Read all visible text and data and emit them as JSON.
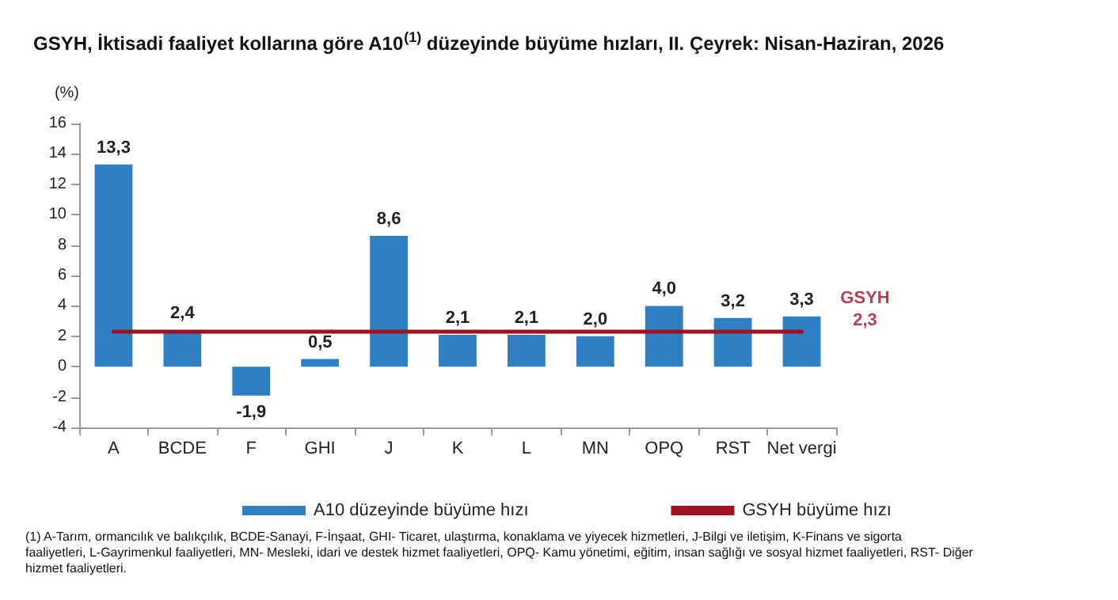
{
  "chart_data": {
    "type": "bar",
    "title": "GSYH, İktisadi faaliyet kollarına göre A10$^{(1)}$ düzeyinde büyüme hızları, II. Çeyrek: Nisan-Haziran, 2026",
    "ylabel": "(%)",
    "categories": [
      "A",
      "BCDE",
      "F",
      "GHI",
      "J",
      "K",
      "L",
      "MN",
      "OPQ",
      "RST",
      "Net vergi"
    ],
    "series": [
      {
        "name": "A10 düzeyinde büyüme hızı",
        "color": "#2f7fc4",
        "values": [
          13.3,
          2.4,
          -1.9,
          0.5,
          8.6,
          2.1,
          2.1,
          2.0,
          4.0,
          3.2,
          3.3
        ],
        "value_labels": [
          "13,3",
          "2,4",
          "-1,9",
          "0,5",
          "8,6",
          "2,1",
          "2,1",
          "2,0",
          "4,0",
          "3,2",
          "3,3"
        ]
      },
      {
        "name": "GSYH büyüme hızı",
        "type": "line",
        "color": "#a0101e",
        "values": [
          2.3,
          2.3,
          2.3,
          2.3,
          2.3,
          2.3,
          2.3,
          2.3,
          2.3,
          2.3,
          2.3
        ]
      }
    ],
    "ylim": [
      -4,
      16
    ],
    "yticks": [
      -4,
      -2,
      0,
      2,
      4,
      6,
      8,
      10,
      12,
      14,
      16
    ],
    "grid": false,
    "legend": "bottom",
    "marker": "none",
    "line_style": "solid",
    "annotations": [
      {
        "text": "GSYH\n2,3",
        "x": "Net vergi",
        "y": 2.3
      },
      "(1) A-Tarım, ormancılık ve balıkçılık, BCDE-Sanayi, F-İnşaat, GHI- Ticaret, ulaştırma, konaklama ve yiyecek hizmetleri, J-Bilgi ve iletişim, K-Finans ve sigorta faaliyetleri, L-Gayrimenkul faaliyetleri, MN- Mesleki, idari ve destek hizmet faaliyetleri, OPQ- Kamu yönetimi, eğitim, insan sağlığı ve sosyal hizmet faaliyetleri, RST- Diğer hizmet faaliyetleri."
    ]
  }
}
